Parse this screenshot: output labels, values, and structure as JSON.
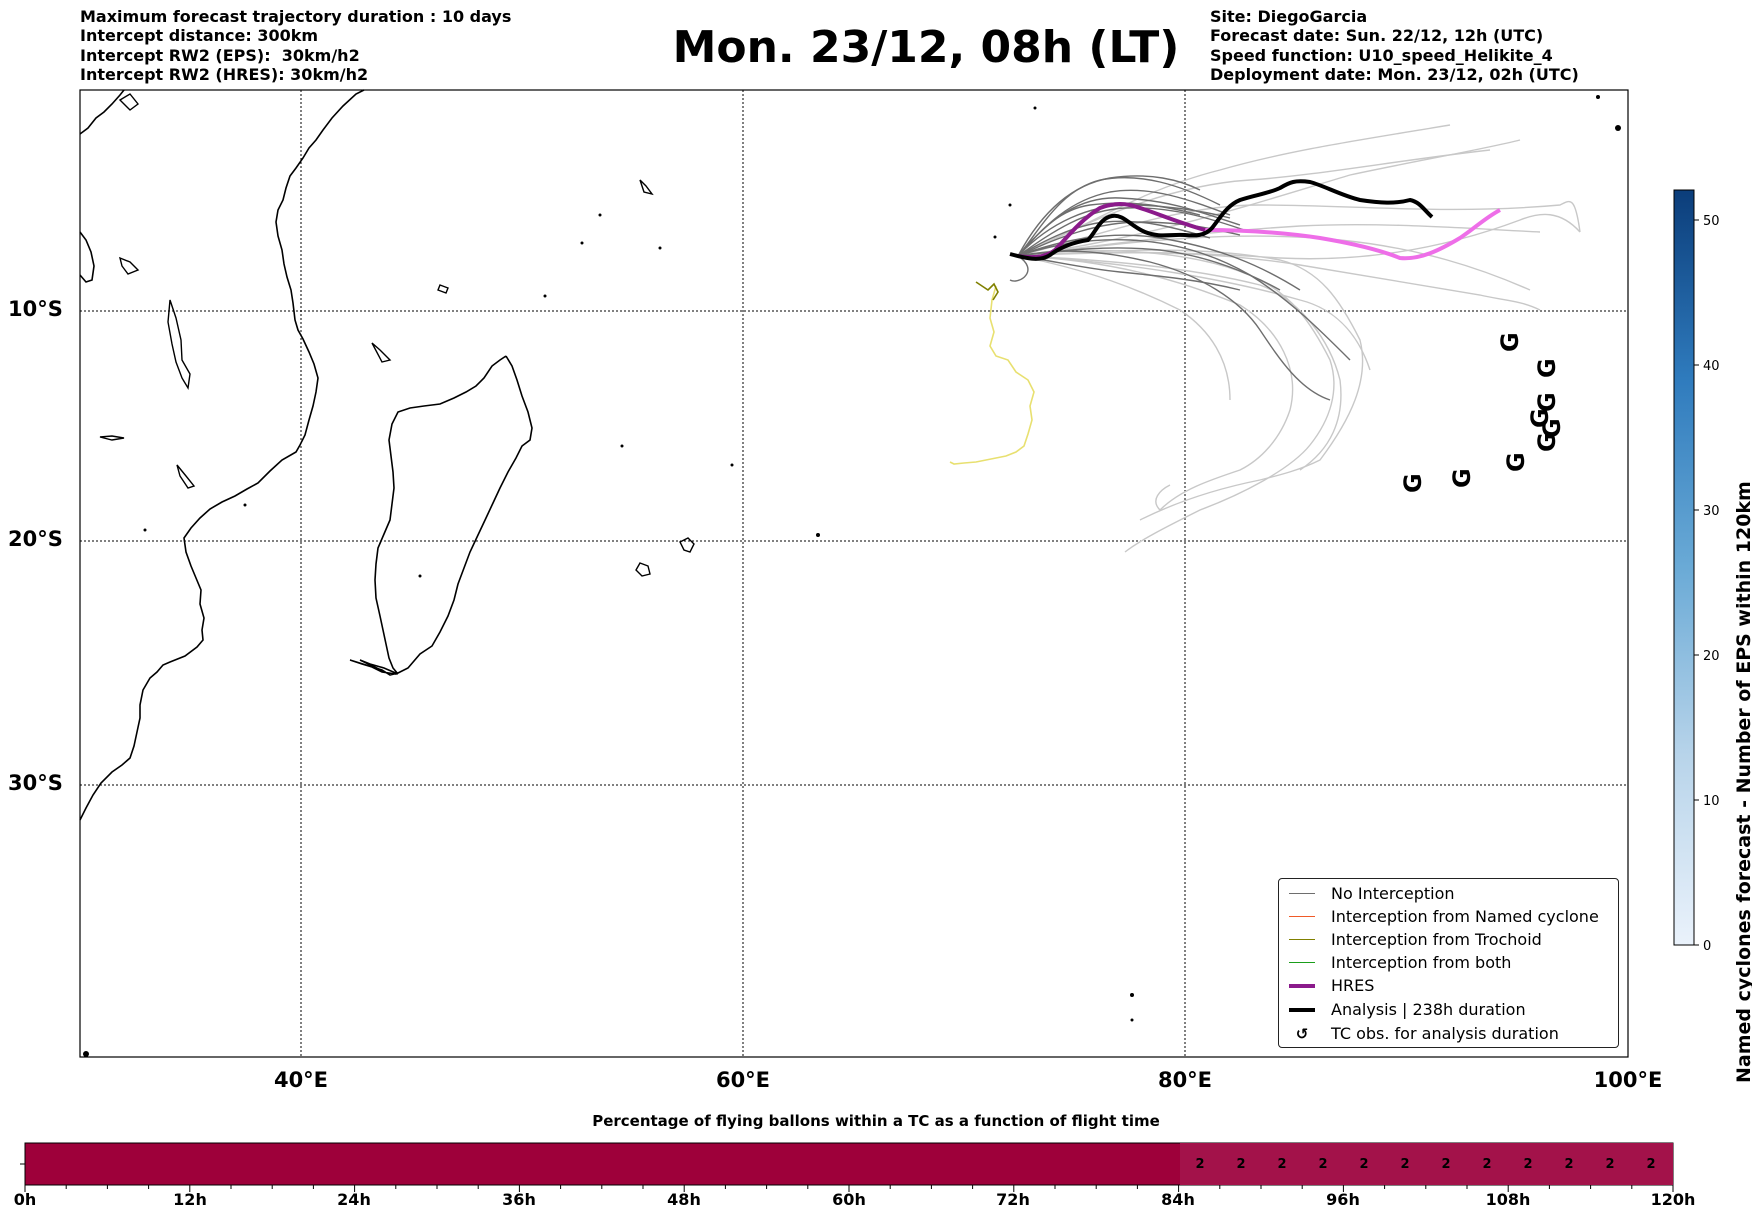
{
  "header": {
    "left_lines": [
      "Maximum forecast trajectory duration : 10 days",
      "Intercept distance: 300km",
      "Intercept RW2 (EPS):  30km/h2",
      "Intercept RW2 (HRES): 30km/h2"
    ],
    "title": "Mon. 23/12, 08h (LT)",
    "right_lines": [
      "Site: DiegoGarcia",
      "Forecast date: Sun. 22/12, 12h (UTC)",
      "Speed function: U10_speed_Helikite_4",
      "Deployment date: Mon. 23/12, 02h (UTC)"
    ]
  },
  "map": {
    "lat_labels": [
      "10°S",
      "20°S",
      "30°S"
    ],
    "lon_labels": [
      "40°E",
      "60°E",
      "80°E",
      "100°E"
    ],
    "tc_symbol": "G"
  },
  "legend": {
    "items": [
      {
        "label": "No Interception",
        "color": "#6e6e6e",
        "kind": "line-thin"
      },
      {
        "label": "Interception from Named cyclone",
        "color": "#f05a28",
        "kind": "line-thin"
      },
      {
        "label": "Interception from Trochoid",
        "color": "#808000",
        "kind": "line-thin"
      },
      {
        "label": "Interception from both",
        "color": "#1a9e1a",
        "kind": "line-thin"
      },
      {
        "label": "HRES",
        "color": "#8b1a8b",
        "kind": "line-thick"
      },
      {
        "label": "Analysis | 238h duration",
        "color": "#000000",
        "kind": "line-thick"
      },
      {
        "label": "TC obs. for analysis duration",
        "color": "#000000",
        "kind": "symbol"
      }
    ]
  },
  "colorbar": {
    "label": "Named cyclones forecast - Number of EPS within 120km",
    "ticks": [
      "0",
      "10",
      "20",
      "30",
      "40",
      "50"
    ],
    "color_low": "#eaf2fb",
    "color_high": "#0b3d7a"
  },
  "timeline": {
    "title": "Percentage of flying ballons within a TC as a function of flight time",
    "ticks": [
      "0h",
      "12h",
      "24h",
      "36h",
      "48h",
      "60h",
      "72h",
      "84h",
      "96h",
      "108h",
      "120h"
    ],
    "cell_values": [
      "2",
      "2",
      "2",
      "2",
      "2",
      "2",
      "2",
      "2",
      "2",
      "2",
      "2",
      "2"
    ],
    "bar_color": "#9e003a",
    "cell_color": "#a3124a"
  },
  "colors": {
    "eps_dark": "#6e6e6e",
    "eps_light": "#c8c8c8",
    "hres": "#8b1a8b",
    "hres_ext": "#ee6ee8",
    "analysis": "#000000",
    "trochoid_dark": "#808000",
    "trochoid_light": "#e8e070"
  }
}
